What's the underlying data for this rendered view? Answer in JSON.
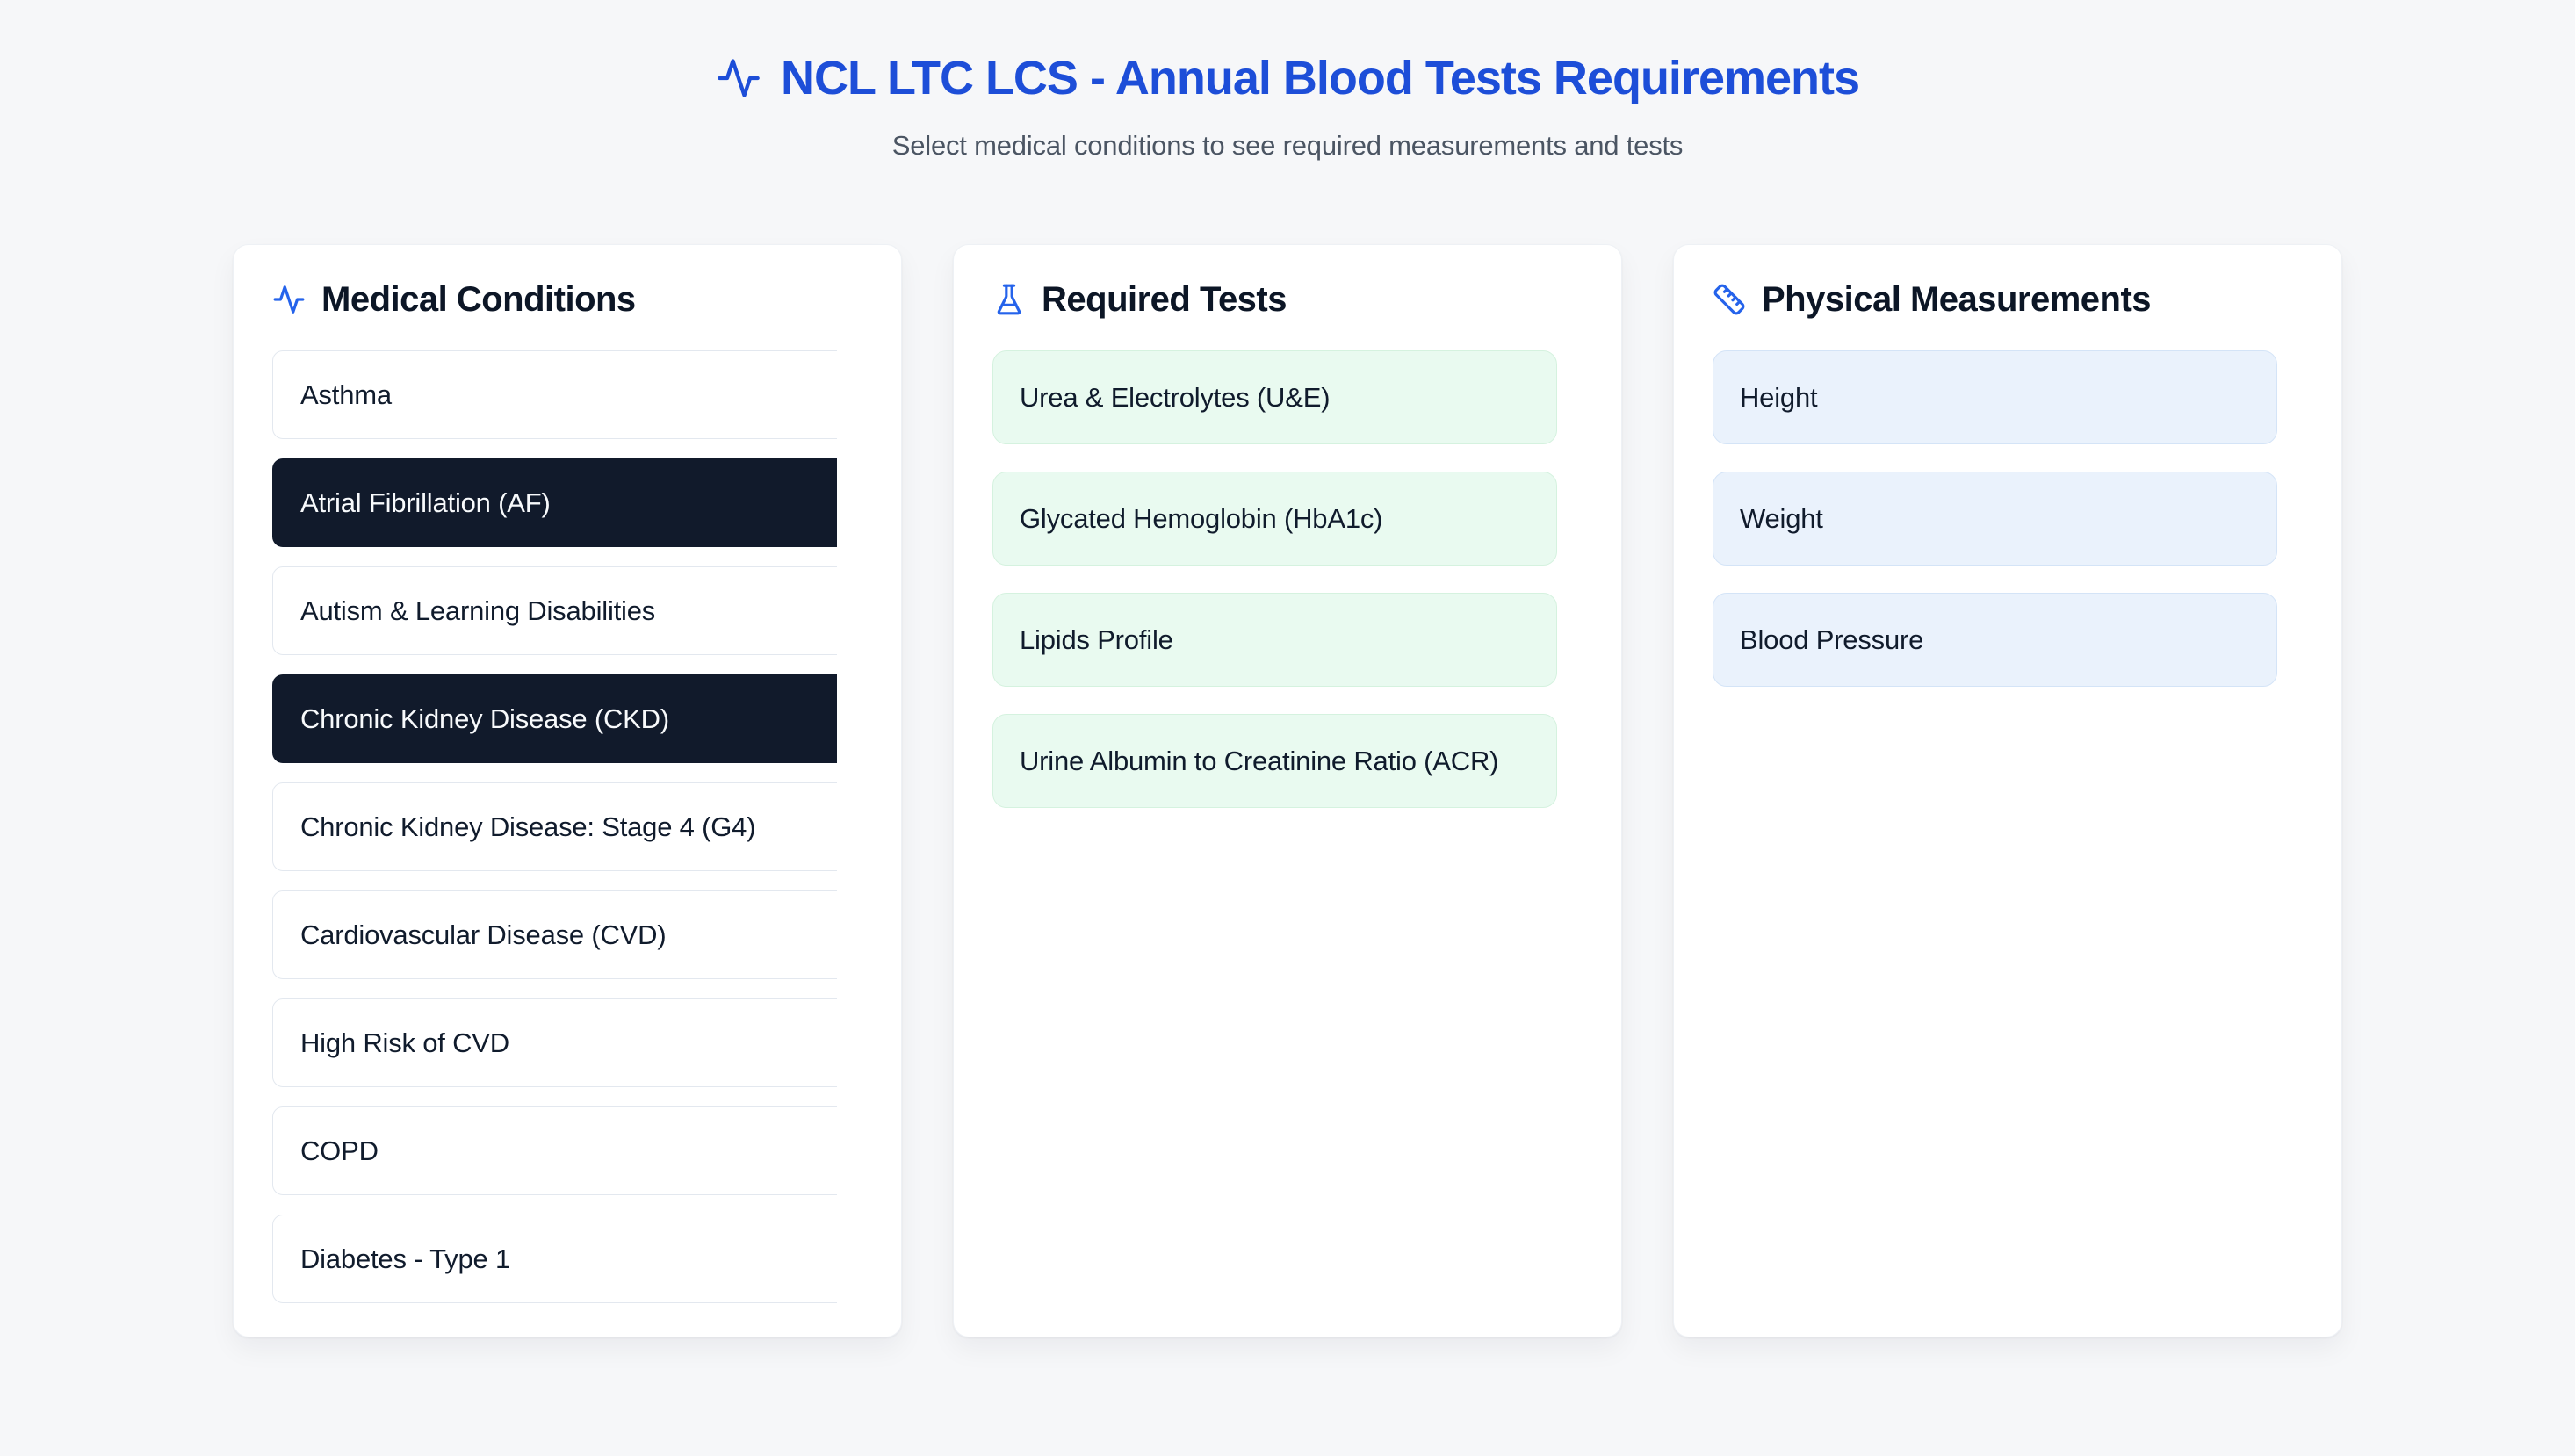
{
  "header": {
    "title": "NCL LTC LCS - Annual Blood Tests Requirements",
    "subtitle": "Select medical conditions to see required measurements and tests"
  },
  "panels": {
    "conditions": {
      "title": "Medical Conditions",
      "icon": "activity-icon",
      "items": [
        {
          "label": "Asthma",
          "selected": false
        },
        {
          "label": "Atrial Fibrillation (AF)",
          "selected": true
        },
        {
          "label": "Autism & Learning Disabilities",
          "selected": false
        },
        {
          "label": "Chronic Kidney Disease (CKD)",
          "selected": true
        },
        {
          "label": "Chronic Kidney Disease: Stage 4 (G4)",
          "selected": false
        },
        {
          "label": "Cardiovascular Disease (CVD)",
          "selected": false
        },
        {
          "label": "High Risk of CVD",
          "selected": false
        },
        {
          "label": "COPD",
          "selected": false
        },
        {
          "label": "Diabetes - Type 1",
          "selected": false
        }
      ]
    },
    "tests": {
      "title": "Required Tests",
      "icon": "flask-icon",
      "items": [
        "Urea & Electrolytes (U&E)",
        "Glycated Hemoglobin (HbA1c)",
        "Lipids Profile",
        "Urine Albumin to Creatinine Ratio (ACR)"
      ]
    },
    "measurements": {
      "title": "Physical Measurements",
      "icon": "ruler-icon",
      "items": [
        "Height",
        "Weight",
        "Blood Pressure"
      ]
    }
  },
  "colors": {
    "title_blue": "#1d4ed8",
    "icon_blue": "#2563eb",
    "selected_condition_bg": "#111a2b",
    "test_item_bg": "#e9faf0",
    "measurement_item_bg": "#eaf2fc",
    "page_bg": "#f6f7f9"
  }
}
